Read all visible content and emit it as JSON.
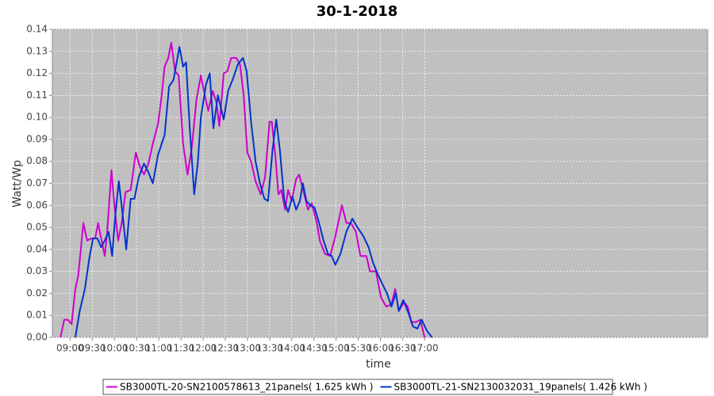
{
  "chart_data": {
    "type": "line",
    "title": "30-1-2018",
    "x_label": "time",
    "y_label": "Watt/Wp",
    "xlim": [
      516,
      1403
    ],
    "ylim": [
      0,
      0.14
    ],
    "grid": true,
    "legend": "bottom",
    "xticks": [
      {
        "value": 540,
        "label": "09:00"
      },
      {
        "value": 570,
        "label": "09:30"
      },
      {
        "value": 600,
        "label": "10:00"
      },
      {
        "value": 630,
        "label": "10:30"
      },
      {
        "value": 660,
        "label": "11:00"
      },
      {
        "value": 690,
        "label": "11:30"
      },
      {
        "value": 720,
        "label": "12:00"
      },
      {
        "value": 750,
        "label": "12:30"
      },
      {
        "value": 780,
        "label": "13:00"
      },
      {
        "value": 810,
        "label": "13:30"
      },
      {
        "value": 840,
        "label": "14:00"
      },
      {
        "value": 870,
        "label": "14:30"
      },
      {
        "value": 900,
        "label": "15:00"
      },
      {
        "value": 930,
        "label": "15:30"
      },
      {
        "value": 960,
        "label": "16:00"
      },
      {
        "value": 990,
        "label": "16:30"
      },
      {
        "value": 1020,
        "label": "17:00"
      }
    ],
    "yticks": [
      {
        "value": 0,
        "label": "0.00"
      },
      {
        "value": 0.01,
        "label": "0.01"
      },
      {
        "value": 0.02,
        "label": "0.02"
      },
      {
        "value": 0.03,
        "label": "0.03"
      },
      {
        "value": 0.04,
        "label": "0.04"
      },
      {
        "value": 0.05,
        "label": "0.05"
      },
      {
        "value": 0.06,
        "label": "0.06"
      },
      {
        "value": 0.07,
        "label": "0.07"
      },
      {
        "value": 0.08,
        "label": "0.08"
      },
      {
        "value": 0.09,
        "label": "0.09"
      },
      {
        "value": 0.1,
        "label": "0.10"
      },
      {
        "value": 0.11,
        "label": "0.11"
      },
      {
        "value": 0.12,
        "label": "0.12"
      },
      {
        "value": 0.13,
        "label": "0.13"
      },
      {
        "value": 0.14,
        "label": "0.14"
      }
    ],
    "series": [
      {
        "name": "SB3000TL-20-SN2100578613_21panels( 1.625 kWh )",
        "color": "#cc00cc",
        "x": [
          527,
          532,
          537,
          542,
          547,
          551,
          558,
          563,
          569,
          574,
          578,
          582,
          587,
          590,
          596,
          600,
          605,
          610,
          615,
          622,
          629,
          634,
          640,
          646,
          652,
          659,
          664,
          668,
          673,
          677,
          682,
          687,
          693,
          699,
          705,
          711,
          717,
          723,
          727,
          733,
          738,
          742,
          748,
          753,
          758,
          765,
          770,
          775,
          780,
          785,
          791,
          798,
          804,
          810,
          813,
          818,
          822,
          826,
          831,
          835,
          840,
          846,
          850,
          857,
          862,
          867,
          874,
          878,
          885,
          892,
          899,
          908,
          914,
          920,
          927,
          933,
          941,
          946,
          954,
          961,
          968,
          975,
          980,
          985,
          992,
          997,
          1002,
          1008,
          1014,
          1020
        ],
        "values": [
          0,
          0.008,
          0.008,
          0.006,
          0.022,
          0.028,
          0.052,
          0.044,
          0.045,
          0.045,
          0.052,
          0.045,
          0.037,
          0.047,
          0.076,
          0.06,
          0.044,
          0.052,
          0.066,
          0.067,
          0.084,
          0.078,
          0.074,
          0.079,
          0.088,
          0.097,
          0.11,
          0.123,
          0.127,
          0.134,
          0.121,
          0.119,
          0.088,
          0.074,
          0.087,
          0.108,
          0.119,
          0.109,
          0.103,
          0.112,
          0.107,
          0.096,
          0.12,
          0.121,
          0.127,
          0.127,
          0.124,
          0.11,
          0.084,
          0.08,
          0.071,
          0.065,
          0.073,
          0.098,
          0.098,
          0.082,
          0.065,
          0.067,
          0.058,
          0.067,
          0.062,
          0.072,
          0.074,
          0.065,
          0.058,
          0.061,
          0.052,
          0.044,
          0.038,
          0.037,
          0.046,
          0.06,
          0.052,
          0.052,
          0.048,
          0.037,
          0.037,
          0.03,
          0.03,
          0.018,
          0.014,
          0.015,
          0.022,
          0.012,
          0.016,
          0.014,
          0.007,
          0.007,
          0.008,
          0
        ]
      },
      {
        "name": "SB3000TL-21-SN2130032031_19panels( 1.426 kWh )",
        "color": "#0033cc",
        "x": [
          547,
          553,
          560,
          566,
          571,
          577,
          582,
          587,
          592,
          597,
          601,
          606,
          611,
          616,
          622,
          627,
          633,
          640,
          646,
          652,
          659,
          664,
          668,
          674,
          680,
          688,
          693,
          697,
          702,
          708,
          713,
          717,
          724,
          729,
          734,
          740,
          748,
          754,
          761,
          767,
          774,
          779,
          785,
          791,
          797,
          803,
          808,
          814,
          819,
          824,
          830,
          835,
          841,
          846,
          851,
          855,
          860,
          865,
          871,
          877,
          883,
          889,
          894,
          899,
          906,
          914,
          922,
          929,
          937,
          944,
          950,
          956,
          963,
          969,
          975,
          981,
          985,
          991,
          998,
          1004,
          1010,
          1016,
          1023,
          1030
        ],
        "values": [
          0,
          0.012,
          0.022,
          0.036,
          0.045,
          0.045,
          0.041,
          0.044,
          0.048,
          0.037,
          0.055,
          0.071,
          0.056,
          0.04,
          0.063,
          0.063,
          0.073,
          0.079,
          0.075,
          0.07,
          0.083,
          0.088,
          0.092,
          0.114,
          0.117,
          0.132,
          0.123,
          0.125,
          0.095,
          0.065,
          0.08,
          0.1,
          0.115,
          0.12,
          0.095,
          0.11,
          0.099,
          0.112,
          0.118,
          0.124,
          0.127,
          0.121,
          0.098,
          0.08,
          0.07,
          0.063,
          0.062,
          0.085,
          0.099,
          0.085,
          0.062,
          0.057,
          0.064,
          0.058,
          0.062,
          0.07,
          0.062,
          0.06,
          0.059,
          0.052,
          0.044,
          0.038,
          0.037,
          0.033,
          0.038,
          0.048,
          0.054,
          0.05,
          0.046,
          0.041,
          0.034,
          0.029,
          0.024,
          0.02,
          0.014,
          0.02,
          0.012,
          0.017,
          0.011,
          0.005,
          0.004,
          0.008,
          0.003,
          0
        ]
      }
    ]
  }
}
